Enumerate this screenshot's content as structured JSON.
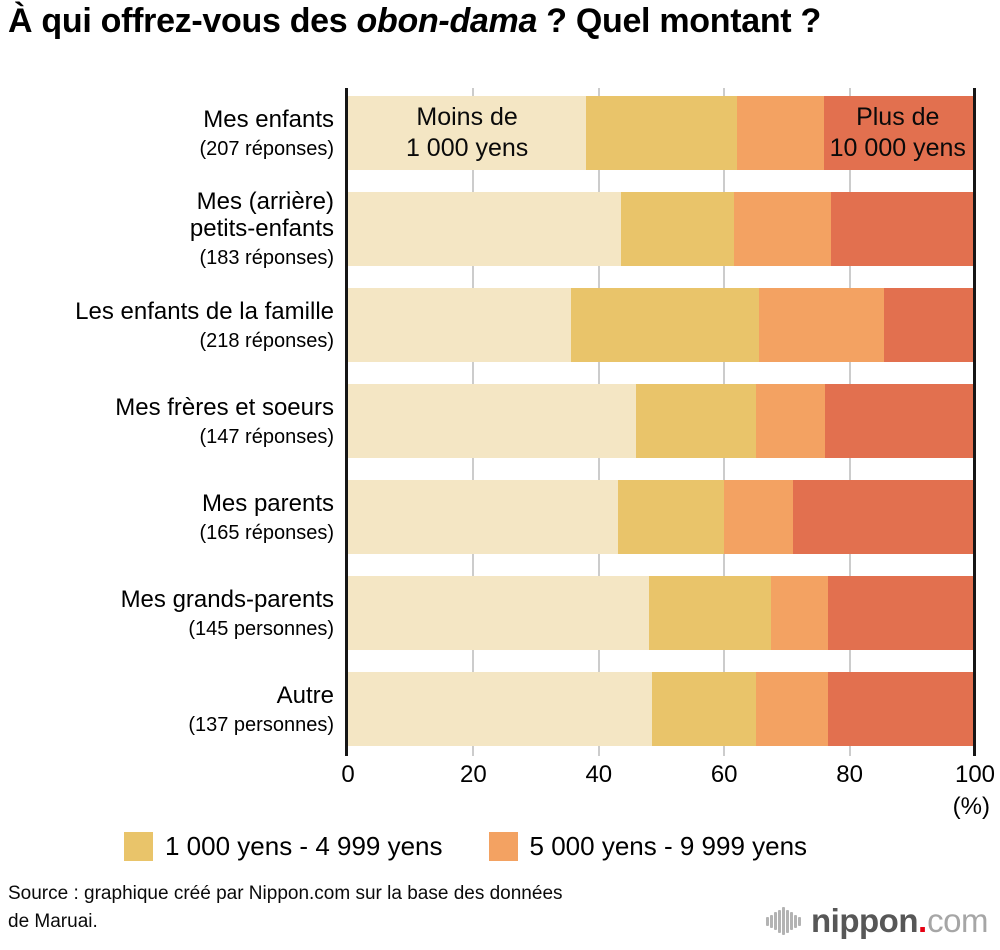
{
  "title": {
    "prefix": "À qui offrez-vous des ",
    "emphasis": "obon-dama",
    "suffix": " ? Quel montant ?"
  },
  "chart_data": {
    "type": "bar",
    "variant": "horizontal-stacked-100",
    "unit": "%",
    "x_axis": {
      "range": [
        0,
        100
      ],
      "ticks": [
        0,
        20,
        40,
        60,
        80,
        100
      ],
      "label": "(%)"
    },
    "grid": {
      "gridline_color": "#cccccc",
      "axis_color": "#161616"
    },
    "segments": [
      {
        "name": "Moins de 1 000 yens",
        "color": "#F4E6C4"
      },
      {
        "name": "1 000 yens - 4 999 yens",
        "color": "#E9C46A"
      },
      {
        "name": "5 000 yens - 9 999 yens",
        "color": "#F3A262"
      },
      {
        "name": "Plus de 10 000 yens",
        "color": "#E2704F"
      }
    ],
    "rows": [
      {
        "label": "Mes enfants",
        "count": "(207 réponses)",
        "values": [
          38,
          24,
          14,
          24
        ]
      },
      {
        "label": "Mes (arrière)\npetits-enfants",
        "count": "(183 réponses)",
        "values": [
          43.5,
          18,
          15.5,
          23
        ]
      },
      {
        "label": "Les enfants de la famille",
        "count": "(218 réponses)",
        "values": [
          35.5,
          30,
          20,
          14.5
        ]
      },
      {
        "label": "Mes frères et soeurs",
        "count": "(147 réponses)",
        "values": [
          46,
          19,
          11,
          24
        ]
      },
      {
        "label": "Mes parents",
        "count": "(165 réponses)",
        "values": [
          43,
          17,
          11,
          29
        ]
      },
      {
        "label": "Mes grands-parents",
        "count": "(145 personnes)",
        "values": [
          48,
          19.5,
          9,
          23.5
        ]
      },
      {
        "label": "Autre",
        "count": "(137 personnes)",
        "values": [
          48.5,
          16.5,
          11.5,
          23.5
        ]
      }
    ],
    "annotations": [
      {
        "text": "Moins de\n1 000 yens",
        "row": 0,
        "segment": 0
      },
      {
        "text": "Plus de\n10 000 yens",
        "row": 0,
        "segment": 3
      }
    ]
  },
  "legend": {
    "items": [
      {
        "label": "1 000 yens - 4 999 yens",
        "color": "#E9C46A"
      },
      {
        "label": "5 000 yens - 9 999 yens",
        "color": "#F3A262"
      }
    ]
  },
  "source": {
    "text": "Source : graphique créé par Nippon.com sur la base des données\nde Maruai."
  },
  "logo": {
    "brand": "nippon",
    "dot": ".",
    "tld": "com",
    "brand_color": "#575757",
    "dot_color": "#e60012",
    "tld_color": "#a6a6a6",
    "icon_color": "#b3b3b3"
  }
}
